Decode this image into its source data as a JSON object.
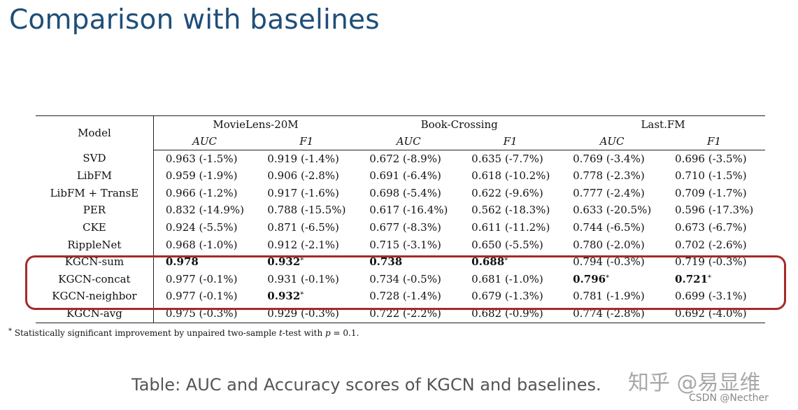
{
  "slide": {
    "title": "Comparison with baselines"
  },
  "table": {
    "model_header": "Model",
    "datasets": [
      "MovieLens-20M",
      "Book-Crossing",
      "Last.FM"
    ],
    "metrics": [
      "AUC",
      "F1",
      "AUC",
      "F1",
      "AUC",
      "F1"
    ],
    "rows": [
      {
        "model": "SVD",
        "cells": [
          {
            "v": "0.963 (-1.5%)"
          },
          {
            "v": "0.919 (-1.4%)"
          },
          {
            "v": "0.672 (-8.9%)"
          },
          {
            "v": "0.635 (-7.7%)"
          },
          {
            "v": "0.769 (-3.4%)"
          },
          {
            "v": "0.696 (-3.5%)"
          }
        ]
      },
      {
        "model": "LibFM",
        "cells": [
          {
            "v": "0.959 (-1.9%)"
          },
          {
            "v": "0.906 (-2.8%)"
          },
          {
            "v": "0.691 (-6.4%)"
          },
          {
            "v": "0.618 (-10.2%)"
          },
          {
            "v": "0.778 (-2.3%)"
          },
          {
            "v": "0.710 (-1.5%)"
          }
        ]
      },
      {
        "model": "LibFM + TransE",
        "cells": [
          {
            "v": "0.966 (-1.2%)"
          },
          {
            "v": "0.917 (-1.6%)"
          },
          {
            "v": "0.698 (-5.4%)"
          },
          {
            "v": "0.622 (-9.6%)"
          },
          {
            "v": "0.777 (-2.4%)"
          },
          {
            "v": "0.709 (-1.7%)"
          }
        ]
      },
      {
        "model": "PER",
        "cells": [
          {
            "v": "0.832 (-14.9%)"
          },
          {
            "v": "0.788 (-15.5%)"
          },
          {
            "v": "0.617 (-16.4%)"
          },
          {
            "v": "0.562 (-18.3%)"
          },
          {
            "v": "0.633 (-20.5%)"
          },
          {
            "v": "0.596 (-17.3%)"
          }
        ]
      },
      {
        "model": "CKE",
        "cells": [
          {
            "v": "0.924 (-5.5%)"
          },
          {
            "v": "0.871 (-6.5%)"
          },
          {
            "v": "0.677 (-8.3%)"
          },
          {
            "v": "0.611 (-11.2%)"
          },
          {
            "v": "0.744 (-6.5%)"
          },
          {
            "v": "0.673 (-6.7%)"
          }
        ]
      },
      {
        "model": "RippleNet",
        "cells": [
          {
            "v": "0.968 (-1.0%)"
          },
          {
            "v": "0.912 (-2.1%)"
          },
          {
            "v": "0.715 (-3.1%)"
          },
          {
            "v": "0.650 (-5.5%)"
          },
          {
            "v": "0.780 (-2.0%)"
          },
          {
            "v": "0.702 (-2.6%)"
          }
        ]
      },
      {
        "model": "KGCN-sum",
        "cells": [
          {
            "v": "0.978",
            "bold": true
          },
          {
            "v": "0.932",
            "bold": true,
            "star": "*"
          },
          {
            "v": "0.738",
            "bold": true
          },
          {
            "v": "0.688",
            "bold": true,
            "star": "*"
          },
          {
            "v": "0.794 (-0.3%)"
          },
          {
            "v": "0.719 (-0.3%)"
          }
        ]
      },
      {
        "model": "KGCN-concat",
        "cells": [
          {
            "v": "0.977 (-0.1%)"
          },
          {
            "v": "0.931 (-0.1%)"
          },
          {
            "v": "0.734 (-0.5%)"
          },
          {
            "v": "0.681 (-1.0%)"
          },
          {
            "v": "0.796",
            "bold": true,
            "star": "*"
          },
          {
            "v": "0.721",
            "bold": true,
            "star": "*"
          }
        ]
      },
      {
        "model": "KGCN-neighbor",
        "cells": [
          {
            "v": "0.977 (-0.1%)"
          },
          {
            "v": "0.932",
            "bold": true,
            "star": "*"
          },
          {
            "v": "0.728 (-1.4%)"
          },
          {
            "v": "0.679 (-1.3%)"
          },
          {
            "v": "0.781 (-1.9%)"
          },
          {
            "v": "0.699 (-3.1%)"
          }
        ]
      },
      {
        "model": "KGCN-avg",
        "cells": [
          {
            "v": "0.975 (-0.3%)"
          },
          {
            "v": "0.929 (-0.3%)"
          },
          {
            "v": "0.722 (-2.2%)"
          },
          {
            "v": "0.682 (-0.9%)"
          },
          {
            "v": "0.774 (-2.8%)"
          },
          {
            "v": "0.692 (-4.0%)"
          }
        ]
      }
    ],
    "highlight_rows": [
      6,
      8
    ],
    "highlight_color": "#a52a2a"
  },
  "footnote": {
    "star": "*",
    "text_before": " Statistically significant improvement by unpaired two-sample ",
    "t": "t",
    "text_mid": "-test with ",
    "p": "p",
    "text_after": " = 0.1."
  },
  "caption": "Table: AUC and Accuracy scores of KGCN and baselines.",
  "watermarks": {
    "zhihu": "知乎 @易显维",
    "csdn": "CSDN @Necther"
  }
}
